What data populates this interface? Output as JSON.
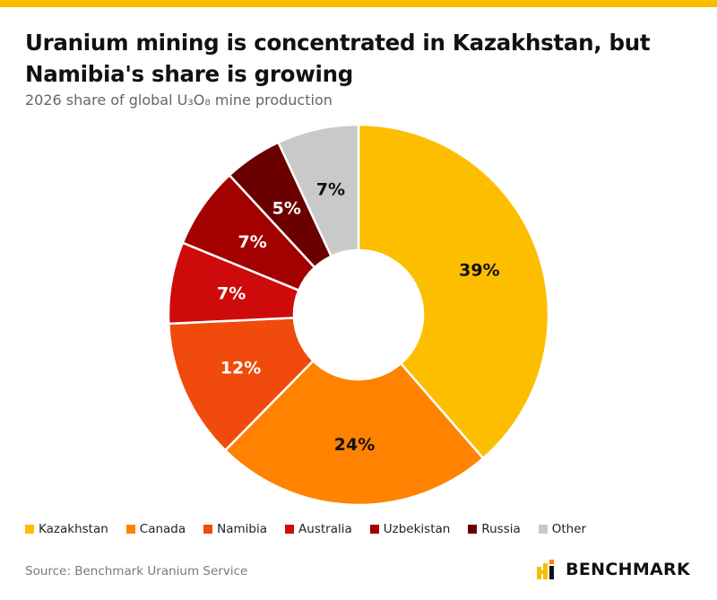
{
  "header": {
    "accent_color": "#F7BE00",
    "title_line1": "Uranium mining is concentrated in Kazakhstan, but",
    "title_line2": "Namibia's share is growing",
    "subtitle": "2026 share of global U₃O₈ mine production"
  },
  "chart_data": {
    "type": "pie",
    "donut": true,
    "categories": [
      "Kazakhstan",
      "Canada",
      "Namibia",
      "Australia",
      "Uzbekistan",
      "Russia",
      "Other"
    ],
    "values": [
      39,
      24,
      12,
      7,
      7,
      5,
      7
    ],
    "labels": [
      "39%",
      "24%",
      "12%",
      "7%",
      "7%",
      "5%",
      "7%"
    ],
    "colors": [
      "#FDBE00",
      "#FF8200",
      "#F04A0C",
      "#CF0A0A",
      "#A30000",
      "#6B0000",
      "#C9C9C9"
    ],
    "label_colors": [
      "#111111",
      "#111111",
      "#ffffff",
      "#ffffff",
      "#ffffff",
      "#ffffff",
      "#111111"
    ],
    "legend_position": "bottom-left"
  },
  "footer": {
    "source": "Source: Benchmark Uranium Service",
    "logo_text": "BENCHMARK"
  }
}
